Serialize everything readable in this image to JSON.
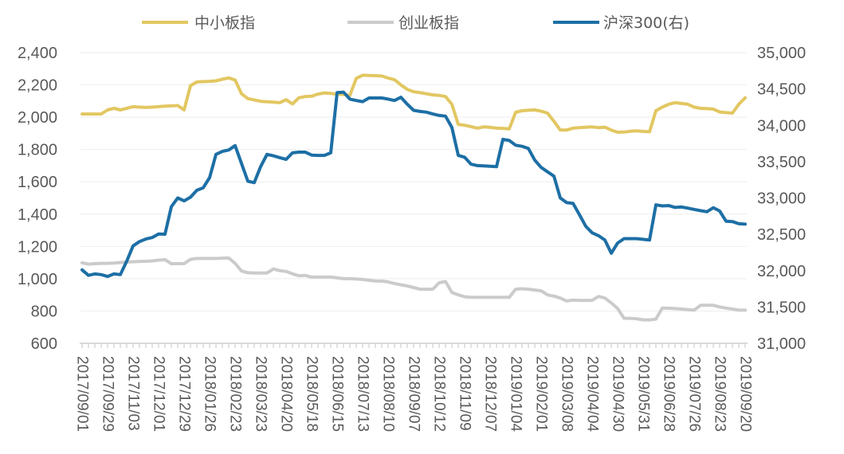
{
  "chart_data": {
    "type": "line",
    "title": "",
    "legend_position": "top",
    "grid": true,
    "colors": {
      "中小板指": "#E2C762",
      "创业板指": "#CBCBCB",
      "沪深300(右)": "#1D6FA5",
      "grid": "#EEEEEE",
      "axis": "#D9D9D9",
      "text": "#595959"
    },
    "y_left": {
      "min": 600,
      "max": 2400,
      "ticks": [
        "600",
        "800",
        "1,000",
        "1,200",
        "1,400",
        "1,600",
        "1,800",
        "2,000",
        "2,200",
        "2,400"
      ],
      "tick_values": [
        600,
        800,
        1000,
        1200,
        1400,
        1600,
        1800,
        2000,
        2200,
        2400
      ]
    },
    "y_right": {
      "min": 31000,
      "max": 35000,
      "ticks": [
        "31,000",
        "31,500",
        "32,000",
        "32,500",
        "33,000",
        "33,500",
        "34,000",
        "34,500",
        "35,000"
      ],
      "tick_values": [
        31000,
        31500,
        32000,
        32500,
        33000,
        33500,
        34000,
        34500,
        35000
      ]
    },
    "x_tick_labels": [
      "2017/09/01",
      "2017/09/29",
      "2017/11/03",
      "2017/12/01",
      "2017/12/29",
      "2018/01/26",
      "2018/02/23",
      "2018/03/23",
      "2018/04/20",
      "2018/05/18",
      "2018/06/15",
      "2018/07/13",
      "2018/08/10",
      "2018/09/07",
      "2018/10/12",
      "2018/11/09",
      "2018/12/07",
      "2019/01/04",
      "2019/02/01",
      "2019/03/08",
      "2019/04/04",
      "2019/04/30",
      "2019/05/31",
      "2019/06/28",
      "2019/07/26",
      "2019/08/23",
      "2019/09/20"
    ],
    "x_points_per_label": 4,
    "series": [
      {
        "name": "中小板指",
        "axis": "left",
        "values": [
          2020,
          2020,
          2020,
          2020,
          2045,
          2055,
          2045,
          2055,
          2065,
          2062,
          2060,
          2062,
          2065,
          2068,
          2070,
          2072,
          2045,
          2195,
          2218,
          2220,
          2222,
          2225,
          2235,
          2243,
          2230,
          2145,
          2115,
          2107,
          2098,
          2095,
          2093,
          2090,
          2108,
          2082,
          2120,
          2128,
          2130,
          2143,
          2150,
          2147,
          2143,
          2140,
          2135,
          2240,
          2260,
          2258,
          2257,
          2255,
          2242,
          2232,
          2200,
          2172,
          2158,
          2152,
          2145,
          2138,
          2135,
          2128,
          2080,
          1955,
          1950,
          1942,
          1932,
          1940,
          1937,
          1932,
          1930,
          1928,
          2030,
          2040,
          2043,
          2045,
          2037,
          2025,
          1975,
          1920,
          1920,
          1932,
          1935,
          1938,
          1940,
          1935,
          1938,
          1920,
          1907,
          1908,
          1913,
          1915,
          1912,
          1910,
          2040,
          2062,
          2080,
          2090,
          2085,
          2080,
          2062,
          2055,
          2053,
          2050,
          2032,
          2028,
          2025,
          2080,
          2120
        ]
      },
      {
        "name": "创业板指",
        "axis": "left",
        "values": [
          1098,
          1090,
          1093,
          1095,
          1095,
          1097,
          1100,
          1103,
          1105,
          1107,
          1108,
          1110,
          1115,
          1118,
          1093,
          1093,
          1093,
          1120,
          1125,
          1125,
          1125,
          1125,
          1127,
          1128,
          1095,
          1048,
          1037,
          1035,
          1035,
          1035,
          1060,
          1050,
          1045,
          1030,
          1018,
          1020,
          1010,
          1010,
          1010,
          1010,
          1005,
          1000,
          1000,
          998,
          995,
          990,
          985,
          985,
          980,
          970,
          962,
          955,
          945,
          935,
          935,
          935,
          975,
          982,
          915,
          900,
          888,
          885,
          885,
          885,
          885,
          885,
          885,
          885,
          935,
          938,
          935,
          930,
          925,
          900,
          892,
          880,
          862,
          868,
          866,
          866,
          866,
          890,
          880,
          850,
          815,
          755,
          755,
          752,
          745,
          745,
          750,
          818,
          817,
          815,
          812,
          808,
          805,
          835,
          835,
          835,
          825,
          818,
          812,
          805,
          805
        ]
      },
      {
        "name": "沪深300(右)",
        "axis": "right",
        "values": [
          32010,
          31935,
          31955,
          31945,
          31920,
          31955,
          31945,
          32130,
          32340,
          32400,
          32435,
          32455,
          32505,
          32500,
          32880,
          33000,
          32960,
          33010,
          33105,
          33140,
          33280,
          33600,
          33640,
          33660,
          33720,
          33475,
          33230,
          33210,
          33430,
          33600,
          33580,
          33555,
          33530,
          33620,
          33630,
          33630,
          33590,
          33585,
          33585,
          33620,
          34450,
          34455,
          34360,
          34340,
          34325,
          34375,
          34375,
          34375,
          34360,
          34340,
          34385,
          34290,
          34205,
          34190,
          34180,
          34155,
          34135,
          34125,
          33970,
          33585,
          33560,
          33465,
          33445,
          33440,
          33435,
          33430,
          33805,
          33790,
          33725,
          33710,
          33680,
          33520,
          33420,
          33360,
          33300,
          33000,
          32935,
          32925,
          32770,
          32610,
          32520,
          32480,
          32420,
          32240,
          32380,
          32440,
          32440,
          32440,
          32430,
          32420,
          32905,
          32890,
          32895,
          32870,
          32875,
          32860,
          32842,
          32825,
          32810,
          32865,
          32820,
          32680,
          32675,
          32645,
          32640
        ]
      }
    ]
  }
}
